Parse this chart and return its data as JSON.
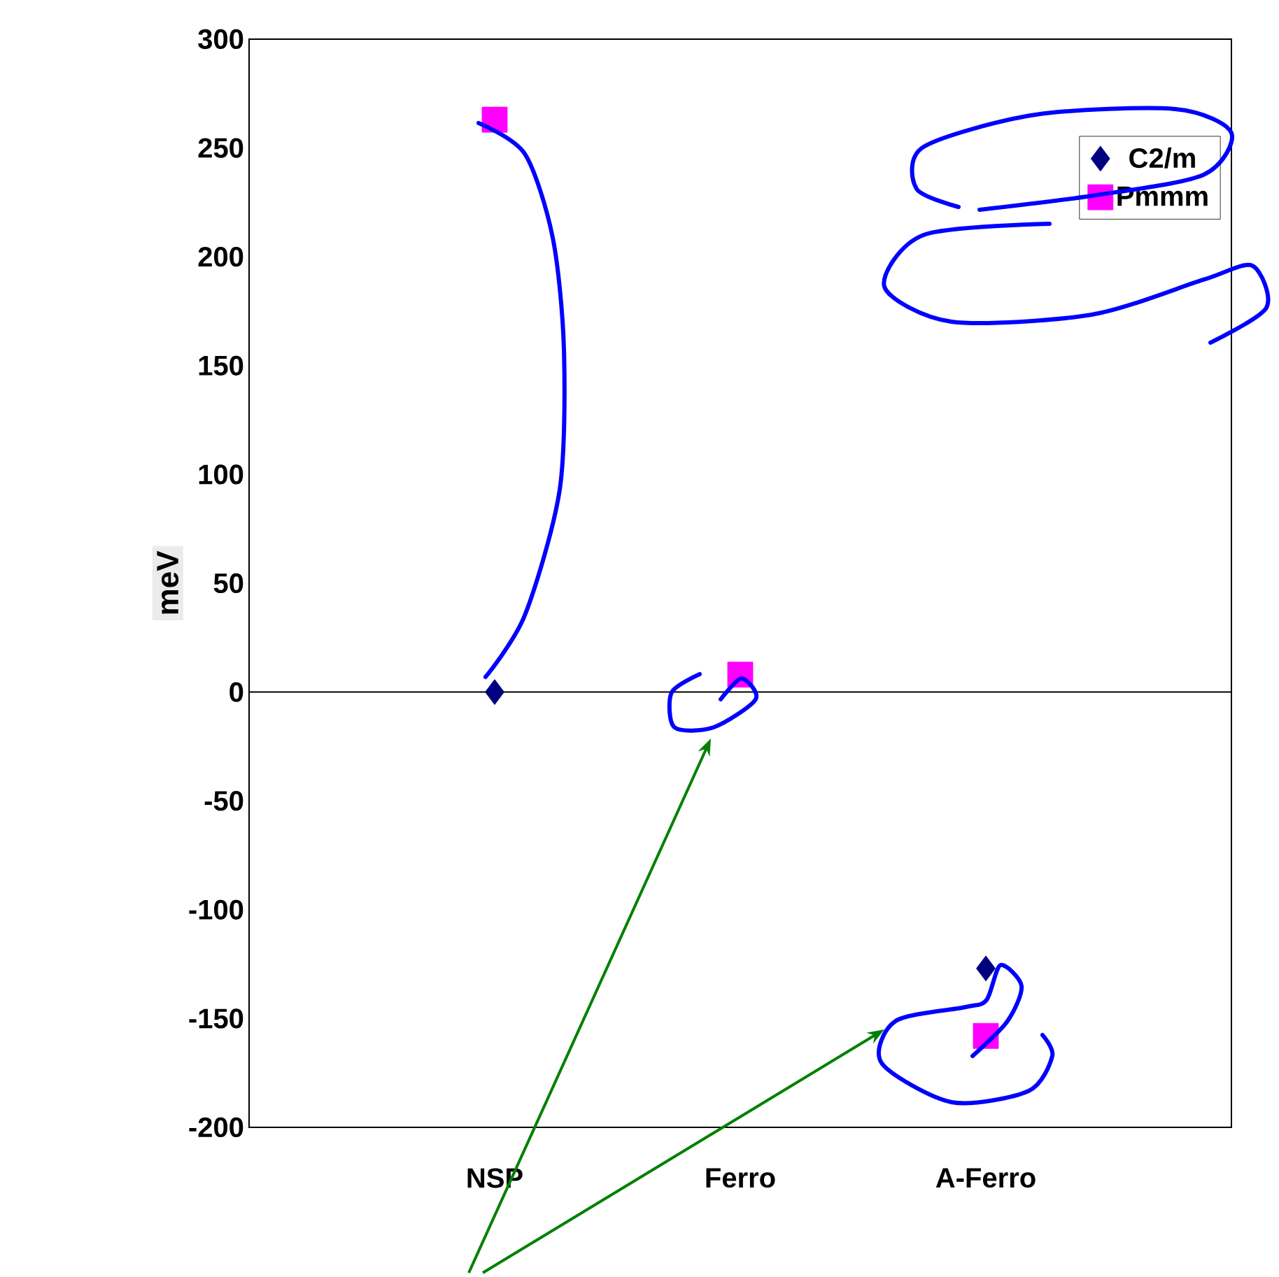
{
  "chart_data": {
    "type": "scatter",
    "ylabel": "meV",
    "categories": [
      "NSP",
      "Ferro",
      "A-Ferro"
    ],
    "series": [
      {
        "name": "C2/m",
        "color": "#000080",
        "marker": "diamond",
        "values": [
          0,
          null,
          -127
        ]
      },
      {
        "name": "Pmmm",
        "color": "#ff00ff",
        "marker": "square",
        "values": [
          263,
          8,
          -158
        ]
      }
    ],
    "ylim": [
      -200,
      300
    ],
    "yticks": [
      -200,
      -150,
      -100,
      -50,
      0,
      50,
      100,
      150,
      200,
      250,
      300
    ],
    "ref_lines": [
      {
        "axis": "y",
        "value": 0,
        "color": "#000000"
      }
    ],
    "legend": "top right",
    "grid": false
  }
}
